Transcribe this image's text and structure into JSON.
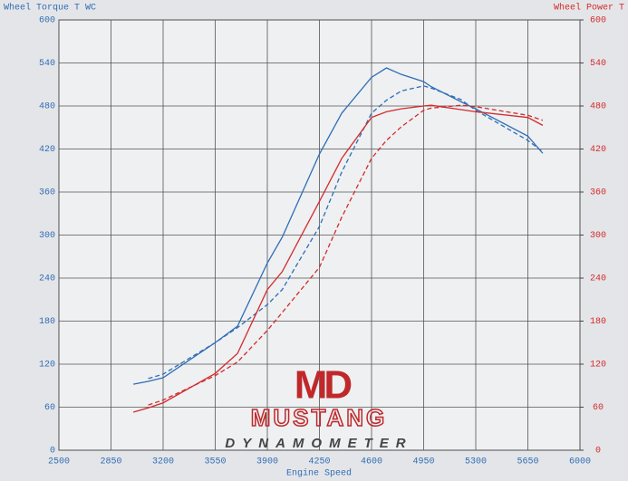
{
  "chart_data": {
    "type": "line",
    "y_label": "Wheel Torque T WC",
    "y2_label": "Wheel Power T",
    "x_label": "Engine Speed",
    "logo": {
      "mark": "MD",
      "name": "MUSTANG",
      "subtitle": "DYNAMOMETER"
    },
    "x": [
      3000,
      3100,
      3200,
      3550,
      3700,
      3900,
      4000,
      4250,
      4400,
      4600,
      4700,
      4800,
      4950,
      5000,
      5200,
      5300,
      5650,
      5750
    ],
    "series": [
      {
        "color": "#2f6db5",
        "dash": false,
        "axis": "y",
        "values": [
          92,
          96,
          101,
          150,
          173,
          261,
          297,
          413,
          470,
          520,
          533,
          524,
          514,
          507,
          486,
          476,
          438,
          414
        ]
      },
      {
        "color": "#2f6db5",
        "dash": true,
        "axis": "y",
        "values": [
          null,
          100,
          106,
          150,
          171,
          203,
          224,
          312,
          388,
          470,
          488,
          501,
          508,
          505,
          489,
          474,
          432,
          416
        ]
      },
      {
        "color": "#d42a2a",
        "dash": false,
        "axis": "y2",
        "values": [
          53,
          59,
          66,
          107,
          135,
          224,
          249,
          347,
          407,
          464,
          472,
          476,
          480,
          481,
          475,
          472,
          464,
          453
        ]
      },
      {
        "color": "#d42a2a",
        "dash": true,
        "axis": "y2",
        "values": [
          null,
          63,
          70,
          104,
          123,
          167,
          192,
          255,
          325,
          407,
          432,
          451,
          474,
          477,
          481,
          479,
          467,
          460
        ]
      }
    ],
    "xlim": [
      2500,
      6000
    ],
    "xticks": [
      2500,
      2850,
      3200,
      3550,
      3900,
      4250,
      4600,
      4950,
      5300,
      5650,
      6000
    ],
    "ylim": [
      0,
      600
    ],
    "yticks": [
      0,
      60,
      120,
      180,
      240,
      300,
      360,
      420,
      480,
      540,
      600
    ],
    "y2lim": [
      0,
      600
    ],
    "y2ticks": [
      0,
      60,
      120,
      180,
      240,
      300,
      360,
      420,
      480,
      540,
      600
    ],
    "grid": true
  }
}
